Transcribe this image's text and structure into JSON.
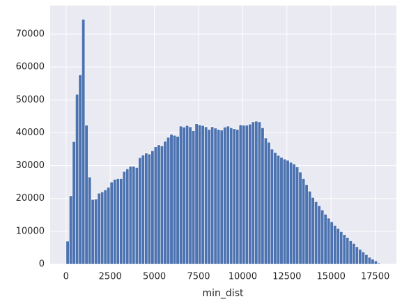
{
  "chart_data": {
    "type": "histogram",
    "xlabel": "min_dist",
    "bins": [
      0,
      178,
      356,
      534,
      712,
      890,
      1068,
      1246,
      1424,
      1602,
      1780,
      1958,
      2136,
      2314,
      2492,
      2670,
      2848,
      3026,
      3204,
      3382,
      3560,
      3738,
      3916,
      4094,
      4272,
      4450,
      4628,
      4806,
      4984,
      5162,
      5340,
      5518,
      5696,
      5874,
      6052,
      6230,
      6408,
      6586,
      6764,
      6942,
      7120,
      7298,
      7476,
      7654,
      7832,
      8010,
      8188,
      8366,
      8544,
      8722,
      8900,
      9078,
      9256,
      9434,
      9612,
      9790,
      9968,
      10146,
      10324,
      10502,
      10680,
      10858,
      11036,
      11214,
      11392,
      11570,
      11748,
      11926,
      12104,
      12282,
      12460,
      12638,
      12816,
      12994,
      13172,
      13350,
      13528,
      13706,
      13884,
      14062,
      14240,
      14418,
      14596,
      14774,
      14952,
      15130,
      15308,
      15486,
      15664,
      15842,
      16020,
      16198,
      16376,
      16554,
      16732,
      16910,
      17088,
      17266,
      17444,
      17622,
      17800
    ],
    "counts": [
      7000,
      20800,
      37300,
      51700,
      57600,
      74500,
      42300,
      26500,
      19700,
      19800,
      21600,
      22000,
      22600,
      23400,
      25000,
      25800,
      26000,
      26000,
      28200,
      29000,
      29800,
      29800,
      29400,
      32400,
      33200,
      33800,
      33500,
      34500,
      35700,
      36300,
      36000,
      37400,
      38600,
      39500,
      39200,
      38900,
      42000,
      41700,
      42200,
      41800,
      40600,
      42700,
      42400,
      42200,
      41800,
      41000,
      41800,
      41400,
      41000,
      40800,
      41700,
      42000,
      41500,
      41200,
      41000,
      42400,
      42300,
      42300,
      42600,
      43300,
      43500,
      43300,
      41500,
      38400,
      37100,
      35000,
      34000,
      33100,
      32500,
      32000,
      31600,
      31000,
      30500,
      29600,
      28000,
      26000,
      24200,
      22200,
      20300,
      19000,
      17800,
      16500,
      15200,
      14000,
      12900,
      11800,
      10900,
      9900,
      9000,
      8100,
      7100,
      6300,
      5300,
      4500,
      3700,
      2900,
      2100,
      1500,
      1000,
      300
    ],
    "color": "#4c72b0",
    "xlim": [
      -900,
      18700
    ],
    "ylim": [
      0,
      78700
    ],
    "xticks": [
      0,
      2500,
      5000,
      7500,
      10000,
      12500,
      15000,
      17500
    ],
    "yticks": [
      0,
      10000,
      20000,
      30000,
      40000,
      50000,
      60000,
      70000
    ],
    "grid": true
  }
}
